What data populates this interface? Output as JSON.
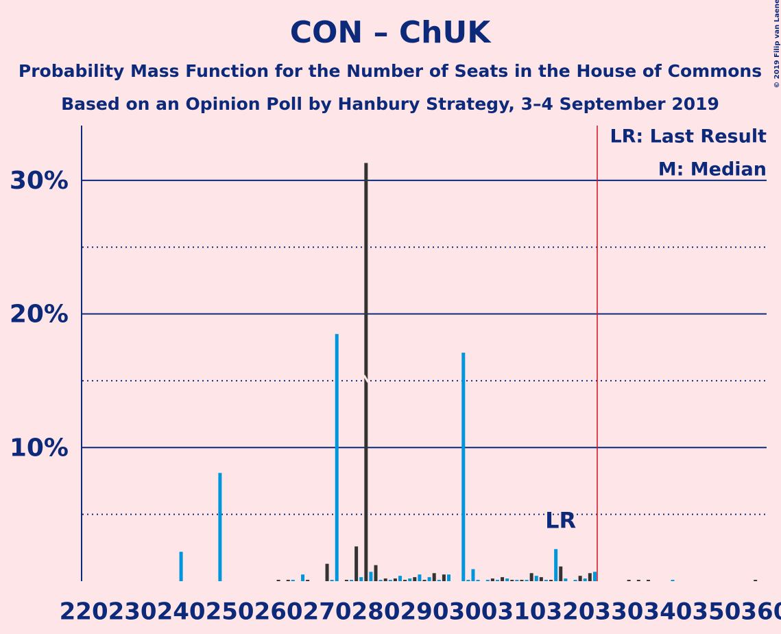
{
  "chart_data": {
    "type": "bar",
    "title": "CON – ChUK",
    "subtitle": "Probability Mass Function for the Number of Seats in the House of Commons",
    "subtitle2": "Based on an Opinion Poll by Hanbury Strategy, 3–4 September 2019",
    "copyright": "© 2019 Filip van Laenen",
    "legend_lr": "LR: Last Result",
    "legend_median": "M: Median",
    "lr_label": "LR",
    "last_result": 317,
    "median": 278,
    "majority": 325.5,
    "x": [
      220,
      221,
      222,
      223,
      224,
      225,
      226,
      227,
      228,
      229,
      230,
      231,
      232,
      233,
      234,
      235,
      236,
      237,
      238,
      239,
      240,
      241,
      242,
      243,
      244,
      245,
      246,
      247,
      248,
      249,
      250,
      251,
      252,
      253,
      254,
      255,
      256,
      257,
      258,
      259,
      260,
      261,
      262,
      263,
      264,
      265,
      266,
      267,
      268,
      269,
      270,
      271,
      272,
      273,
      274,
      275,
      276,
      277,
      278,
      279,
      280,
      281,
      282,
      283,
      284,
      285,
      286,
      287,
      288,
      289,
      290,
      291,
      292,
      293,
      294,
      295,
      296,
      297,
      298,
      299,
      300,
      301,
      302,
      303,
      304,
      305,
      306,
      307,
      308,
      309,
      310,
      311,
      312,
      313,
      314,
      315,
      316,
      317,
      318,
      319,
      320,
      321,
      322,
      323,
      324,
      325,
      326,
      327,
      328,
      329,
      330,
      331,
      332,
      333,
      334,
      335,
      336,
      337,
      338,
      339,
      340,
      341,
      342,
      343,
      344,
      345,
      346,
      347,
      348,
      349,
      350,
      351,
      352,
      353,
      354,
      355,
      356,
      357,
      358,
      359,
      360
    ],
    "values": [
      0,
      0,
      0,
      0,
      0,
      0,
      0,
      0,
      0,
      0,
      0,
      0,
      0,
      0,
      0,
      0,
      0,
      0,
      0,
      0,
      2.2,
      0,
      0,
      0,
      0,
      0,
      0,
      0,
      8.1,
      0,
      0,
      0,
      0,
      0,
      0,
      0,
      0,
      0,
      0,
      0,
      0.1,
      0,
      0.1,
      0.1,
      0,
      0.5,
      0.1,
      0,
      0,
      0,
      1.3,
      0.1,
      18.5,
      0,
      0.1,
      0.1,
      2.6,
      0.3,
      31.3,
      0.7,
      1.2,
      0.1,
      0.2,
      0.1,
      0.2,
      0.4,
      0.1,
      0.2,
      0.3,
      0.5,
      0.1,
      0.3,
      0.6,
      0.1,
      0.5,
      0.5,
      0,
      0,
      17.1,
      0.1,
      0.9,
      0.1,
      0,
      0.1,
      0.2,
      0.1,
      0.3,
      0.2,
      0.1,
      0.1,
      0.1,
      0.1,
      0.6,
      0.4,
      0.3,
      0.1,
      0.1,
      2.4,
      1.1,
      0.2,
      0,
      0.1,
      0.4,
      0.2,
      0.6,
      0.7,
      0,
      0,
      0,
      0,
      0,
      0,
      0.1,
      0,
      0.1,
      0,
      0.1,
      0,
      0,
      0,
      0,
      0.1,
      0,
      0,
      0,
      0,
      0,
      0,
      0,
      0,
      0,
      0,
      0,
      0,
      0,
      0,
      0,
      0,
      0.1,
      0,
      0
    ],
    "colors": [
      "#333333",
      "#0096dc",
      "#333333",
      "#0096dc",
      "#333333",
      "#0096dc",
      "#333333",
      "#0096dc",
      "#333333",
      "#0096dc",
      "#333333",
      "#0096dc",
      "#333333",
      "#0096dc",
      "#333333",
      "#0096dc",
      "#333333",
      "#0096dc",
      "#333333",
      "#0096dc",
      "#0096dc",
      "#0096dc",
      "#333333",
      "#0096dc",
      "#333333",
      "#0096dc",
      "#333333",
      "#0096dc",
      "#0096dc",
      "#0096dc",
      "#333333",
      "#0096dc",
      "#333333",
      "#0096dc",
      "#333333",
      "#0096dc",
      "#333333",
      "#0096dc",
      "#333333",
      "#0096dc",
      "#333333",
      "#0096dc",
      "#333333",
      "#0096dc",
      "#333333",
      "#0096dc",
      "#333333",
      "#0096dc",
      "#333333",
      "#0096dc",
      "#333333",
      "#0096dc",
      "#0096dc",
      "#0096dc",
      "#333333",
      "#0096dc",
      "#333333",
      "#0096dc",
      "#333333",
      "#0096dc",
      "#333333",
      "#0096dc",
      "#333333",
      "#0096dc",
      "#333333",
      "#0096dc",
      "#333333",
      "#0096dc",
      "#333333",
      "#0096dc",
      "#333333",
      "#0096dc",
      "#333333",
      "#0096dc",
      "#333333",
      "#0096dc",
      "#333333",
      "#0096dc",
      "#0096dc",
      "#0096dc",
      "#0096dc",
      "#0096dc",
      "#333333",
      "#0096dc",
      "#333333",
      "#0096dc",
      "#333333",
      "#0096dc",
      "#333333",
      "#0096dc",
      "#333333",
      "#0096dc",
      "#333333",
      "#0096dc",
      "#333333",
      "#0096dc",
      "#333333",
      "#0096dc",
      "#333333",
      "#0096dc",
      "#333333",
      "#0096dc",
      "#333333",
      "#0096dc",
      "#333333",
      "#0096dc",
      "#333333",
      "#0096dc",
      "#333333",
      "#0096dc",
      "#333333",
      "#0096dc",
      "#333333",
      "#0096dc",
      "#333333",
      "#0096dc",
      "#333333",
      "#0096dc",
      "#333333",
      "#0096dc",
      "#333333",
      "#0096dc",
      "#333333",
      "#0096dc",
      "#333333",
      "#0096dc",
      "#333333",
      "#0096dc",
      "#333333",
      "#0096dc",
      "#333333",
      "#0096dc",
      "#333333",
      "#0096dc",
      "#333333",
      "#0096dc",
      "#333333",
      "#0096dc",
      "#333333",
      "#0096dc",
      "#333333"
    ],
    "xlim": [
      219.7,
      360.3
    ],
    "xticks": [
      220,
      230,
      240,
      250,
      260,
      270,
      280,
      290,
      300,
      310,
      320,
      330,
      340,
      350,
      360
    ],
    "ylim": [
      0,
      34.1
    ],
    "yticks": [
      {
        "value": 10,
        "label": "10%"
      },
      {
        "value": 20,
        "label": "20%"
      },
      {
        "value": 30,
        "label": "30%"
      }
    ],
    "dotted_grid": [
      5,
      15,
      25
    ],
    "grid_color": "#0d2a7a",
    "majority_color": "#d01020"
  }
}
